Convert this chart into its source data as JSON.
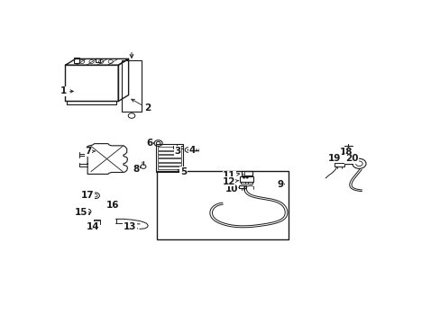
{
  "bg_color": "#ffffff",
  "fig_width": 4.89,
  "fig_height": 3.6,
  "dpi": 100,
  "lc": "#1a1a1a",
  "label_fs": 7.5,
  "label_positions": {
    "1": [
      0.025,
      0.79,
      0.058,
      0.79
    ],
    "2": [
      0.268,
      0.72,
      0.22,
      0.76
    ],
    "3": [
      0.36,
      0.55,
      0.365,
      0.565
    ],
    "4": [
      0.4,
      0.55,
      0.382,
      0.55
    ],
    "5": [
      0.38,
      0.47,
      0.358,
      0.47
    ],
    "6": [
      0.278,
      0.582,
      0.296,
      0.58
    ],
    "7": [
      0.1,
      0.548,
      0.118,
      0.548
    ],
    "8": [
      0.24,
      0.478,
      0.255,
      0.485
    ],
    "9": [
      0.66,
      0.418,
      0.67,
      0.418
    ],
    "10": [
      0.518,
      0.4,
      0.538,
      0.405
    ],
    "11": [
      0.512,
      0.45,
      0.538,
      0.455
    ],
    "12": [
      0.51,
      0.428,
      0.535,
      0.43
    ],
    "13": [
      0.218,
      0.248,
      0.228,
      0.258
    ],
    "14": [
      0.118,
      0.248,
      0.13,
      0.258
    ],
    "15": [
      0.078,
      0.305,
      0.092,
      0.308
    ],
    "16": [
      0.172,
      0.332,
      0.162,
      0.325
    ],
    "17": [
      0.098,
      0.372,
      0.113,
      0.372
    ],
    "18": [
      0.852,
      0.545,
      0.858,
      0.535
    ],
    "19": [
      0.82,
      0.522,
      0.828,
      0.51
    ],
    "20": [
      0.87,
      0.518,
      0.87,
      0.518
    ]
  }
}
